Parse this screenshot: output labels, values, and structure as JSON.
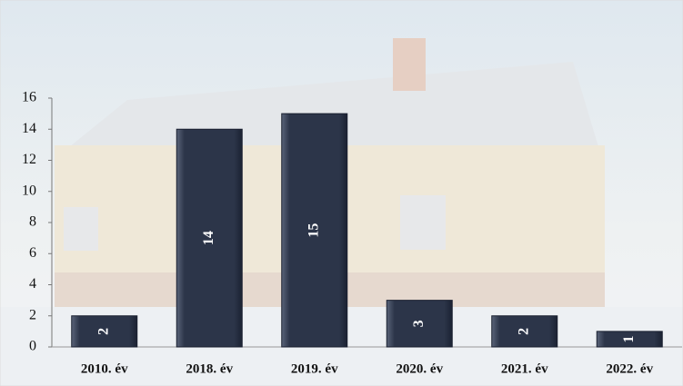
{
  "chart_data": {
    "type": "bar",
    "categories": [
      "2010. év",
      "2018. év",
      "2019. év",
      "2020. év",
      "2021. év",
      "2022. év"
    ],
    "values": [
      2,
      14,
      15,
      3,
      2,
      1
    ],
    "color": "#2c3549",
    "ylim": [
      0,
      16
    ],
    "yticks": [
      0,
      2,
      4,
      6,
      8,
      10,
      12,
      14,
      16
    ]
  }
}
